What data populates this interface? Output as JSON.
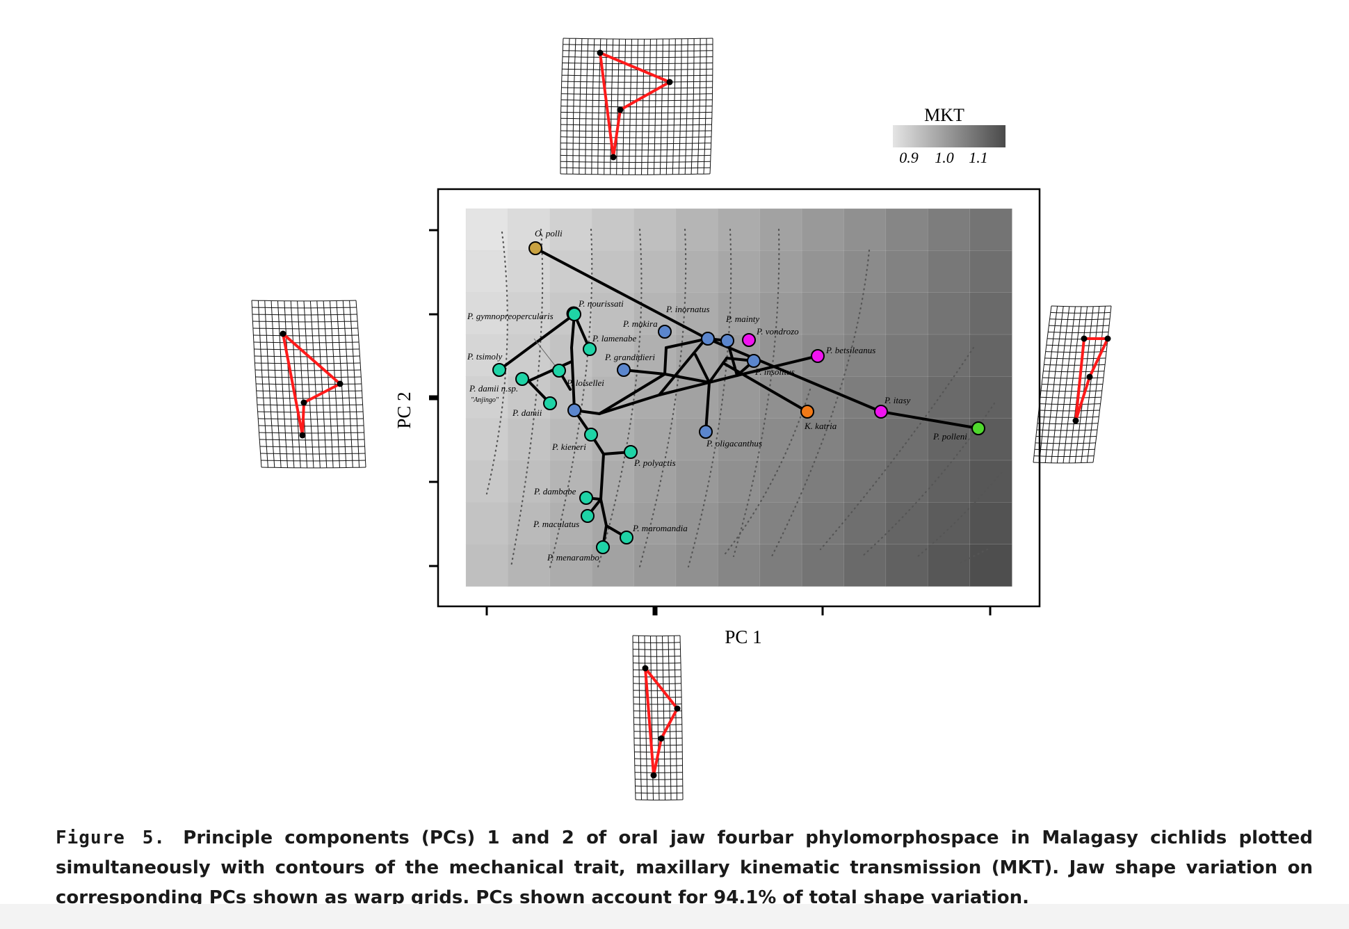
{
  "figure": {
    "label": "Figure 5.",
    "caption": "Principle components (PCs) 1 and 2 of oral jaw fourbar phylomorphospace in Malagasy cichlids plotted simultaneously with contours of the mechanical trait, maxillary kinematic transmission (MKT). Jaw shape variation on corresponding PCs shown as warp grids. PCs shown account for 94.1% of total shape variation."
  },
  "legend": {
    "title": "MKT",
    "ticks": [
      "0.9",
      "1.0",
      "1.1"
    ],
    "gradient_start": "#e4e4e4",
    "gradient_end": "#4a4a4a"
  },
  "colors": {
    "teal": "#1fd3a6",
    "blue": "#5b86cd",
    "magenta": "#f014f0",
    "orange": "#f27a17",
    "green": "#4fd82d",
    "gold": "#c9a241",
    "shape_red": "#ff1a1a"
  },
  "chart_data": {
    "type": "scatter",
    "title": "",
    "xlabel": "PC 1",
    "ylabel": "PC 2",
    "xlim": [
      -0.1,
      0.72
    ],
    "ylim": [
      -0.45,
      0.45
    ],
    "grid": true,
    "background": "MKT contour gradient, light (0.9) upper-left to dark (1.1) lower-right",
    "species": [
      {
        "label": "O. polli",
        "x": 0.06,
        "y": 0.36,
        "color": "gold"
      },
      {
        "label": "P. nourissati",
        "x": 0.13,
        "y": 0.17,
        "color": "teal"
      },
      {
        "label": "P. gymnopreopercularis",
        "x": 0.13,
        "y": 0.16,
        "color": "teal"
      },
      {
        "label": "P. lamenabe",
        "x": 0.15,
        "y": 0.13,
        "color": "teal"
      },
      {
        "label": "P. tsimoly",
        "x": 0.02,
        "y": 0.09,
        "color": "teal"
      },
      {
        "label": "P. damii n.sp. \"Anjingo\"",
        "x": 0.05,
        "y": 0.08,
        "color": "teal"
      },
      {
        "label": "P. loisellei",
        "x": 0.11,
        "y": 0.08,
        "color": "teal"
      },
      {
        "label": "P. damii",
        "x": 0.09,
        "y": 0.05,
        "color": "teal"
      },
      {
        "label": "P. kieneri",
        "x": 0.15,
        "y": 0.0,
        "color": "teal"
      },
      {
        "label": "P. polyactis",
        "x": 0.21,
        "y": -0.05,
        "color": "teal"
      },
      {
        "label": "P. dambabe",
        "x": 0.14,
        "y": -0.16,
        "color": "teal"
      },
      {
        "label": "P. maculatus",
        "x": 0.14,
        "y": -0.19,
        "color": "teal"
      },
      {
        "label": "P. maromandia",
        "x": 0.2,
        "y": -0.23,
        "color": "teal"
      },
      {
        "label": "P. menarambo",
        "x": 0.17,
        "y": -0.26,
        "color": "teal"
      },
      {
        "label": "P. makira",
        "x": 0.25,
        "y": 0.15,
        "color": "blue"
      },
      {
        "label": "P. grandidieri",
        "x": 0.18,
        "y": 0.08,
        "color": "blue"
      },
      {
        "label": "P. inornatus",
        "x": 0.31,
        "y": 0.12,
        "color": "blue"
      },
      {
        "label": "P. mainty",
        "x": 0.34,
        "y": 0.12,
        "color": "blue"
      },
      {
        "label": "P. insolitus",
        "x": 0.38,
        "y": 0.08,
        "color": "blue"
      },
      {
        "label": "P. loiselleiblue",
        "x": 0.12,
        "y": 0.02,
        "color": "blue"
      },
      {
        "label": "P. oligacanthus",
        "x": 0.31,
        "y": -0.04,
        "color": "blue"
      },
      {
        "label": "P. vondrozo",
        "x": 0.38,
        "y": 0.12,
        "color": "magenta"
      },
      {
        "label": "P. betsileanus",
        "x": 0.48,
        "y": 0.09,
        "color": "magenta"
      },
      {
        "label": "P. itasy",
        "x": 0.57,
        "y": -0.02,
        "color": "magenta"
      },
      {
        "label": "K. katria",
        "x": 0.47,
        "y": -0.02,
        "color": "orange"
      },
      {
        "label": "P. polleni",
        "x": 0.7,
        "y": -0.04,
        "color": "green"
      }
    ]
  }
}
